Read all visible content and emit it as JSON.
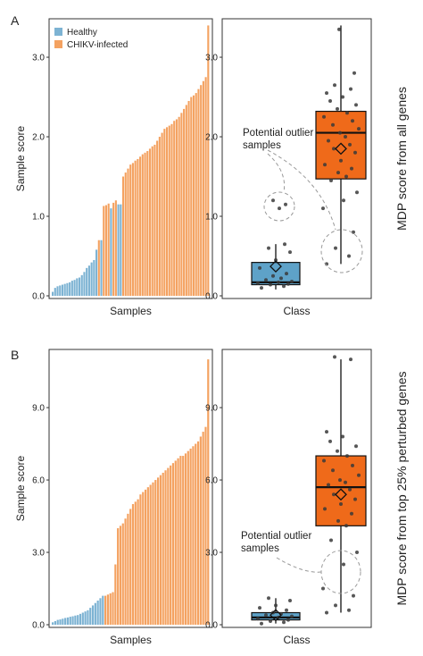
{
  "panel_letters": [
    "A",
    "B"
  ],
  "legend": [
    {
      "label": "Healthy",
      "color": "#7db3d3"
    },
    {
      "label": "CHIKV-infected",
      "color": "#f4a261"
    }
  ],
  "annotation_text": [
    "Potential outlier",
    "samples"
  ],
  "colors": {
    "healthy_box": "#5ea2c8",
    "infected_box": "#ef6a1a"
  },
  "chart_data": [
    {
      "type": "bar",
      "panel": "A",
      "xlabel": "Samples",
      "ylabel": "Sample score",
      "ylim": [
        0,
        3.45
      ],
      "yticks": [
        "0.0",
        "1.0",
        "2.0",
        "3.0"
      ],
      "ytick_values": [
        0,
        1,
        2,
        3
      ],
      "series": [
        {
          "name": "Healthy",
          "values": [
            0.05,
            0.1,
            0.12,
            0.13,
            0.14,
            0.15,
            0.16,
            0.17,
            0.19,
            0.2,
            0.22,
            0.23,
            0.26,
            0.3,
            0.35,
            0.38,
            0.42,
            0.45,
            0.58,
            0.7,
            1.1,
            1.15,
            1.15
          ]
        },
        {
          "name": "CHIKV-infected",
          "values": [
            0.7,
            1.13,
            1.14,
            1.16,
            1.17,
            1.2,
            1.5,
            1.55,
            1.6,
            1.65,
            1.67,
            1.7,
            1.72,
            1.75,
            1.78,
            1.8,
            1.82,
            1.85,
            1.88,
            1.9,
            1.95,
            2.0,
            2.05,
            2.1,
            2.12,
            2.14,
            2.16,
            2.2,
            2.22,
            2.25,
            2.3,
            2.35,
            2.4,
            2.45,
            2.5,
            2.52,
            2.55,
            2.6,
            2.65,
            2.7,
            2.75,
            3.4
          ]
        }
      ],
      "bar_order": [
        "H",
        "H",
        "H",
        "H",
        "H",
        "H",
        "H",
        "H",
        "H",
        "H",
        "H",
        "H",
        "H",
        "H",
        "H",
        "H",
        "H",
        "H",
        "H",
        "I",
        "H",
        "I",
        "I",
        "I",
        "H",
        "I",
        "I",
        "H",
        "H",
        "I",
        "I",
        "I",
        "I",
        "I",
        "I",
        "I",
        "I",
        "I",
        "I",
        "I",
        "I",
        "I",
        "I",
        "I",
        "I",
        "I",
        "I",
        "I",
        "I",
        "I",
        "I",
        "I",
        "I",
        "I",
        "I",
        "I",
        "I",
        "I",
        "I",
        "I",
        "I",
        "I",
        "I",
        "I",
        "I"
      ]
    },
    {
      "type": "box",
      "panel": "A",
      "xlabel": "Class",
      "ylabel": "MDP score from all genes",
      "ylim": [
        0,
        3.45
      ],
      "yticks": [
        "0.0",
        "1.0",
        "2.0",
        "3.0"
      ],
      "ytick_values": [
        0,
        1,
        2,
        3
      ],
      "groups": [
        {
          "name": "Healthy",
          "q1": 0.14,
          "median": 0.17,
          "q3": 0.42,
          "min": 0.08,
          "max": 0.65,
          "mean": 0.37,
          "points": [
            0.1,
            0.12,
            0.14,
            0.15,
            0.16,
            0.17,
            0.18,
            0.2,
            0.22,
            0.25,
            0.28,
            0.35,
            0.45,
            0.55,
            0.6,
            0.65,
            1.1,
            1.15,
            1.2
          ]
        },
        {
          "name": "CHIKV-infected",
          "q1": 1.47,
          "median": 2.05,
          "q3": 2.32,
          "min": 0.4,
          "max": 3.4,
          "mean": 1.85,
          "points": [
            0.4,
            0.5,
            0.6,
            0.8,
            1.1,
            1.2,
            1.3,
            1.45,
            1.5,
            1.55,
            1.6,
            1.65,
            1.7,
            1.8,
            1.85,
            1.9,
            1.95,
            2.0,
            2.05,
            2.1,
            2.15,
            2.2,
            2.25,
            2.3,
            2.35,
            2.4,
            2.45,
            2.5,
            2.55,
            2.6,
            2.65,
            2.8,
            3.35
          ]
        }
      ]
    },
    {
      "type": "bar",
      "panel": "B",
      "xlabel": "Samples",
      "ylabel": "Sample score",
      "ylim": [
        0,
        11.3
      ],
      "yticks": [
        "0.0",
        "3.0",
        "6.0",
        "9.0"
      ],
      "ytick_values": [
        0,
        3,
        6,
        9
      ],
      "series": [
        {
          "name": "Healthy",
          "values": [
            0.1,
            0.15,
            0.2,
            0.22,
            0.25,
            0.28,
            0.3,
            0.33,
            0.35,
            0.38,
            0.4,
            0.45,
            0.5,
            0.55,
            0.6,
            0.7,
            0.8,
            0.9,
            1.0,
            1.1,
            1.2
          ]
        },
        {
          "name": "CHIKV-infected",
          "values": [
            1.2,
            1.25,
            1.3,
            1.35,
            2.5,
            4.0,
            4.1,
            4.2,
            4.4,
            4.6,
            4.8,
            5.0,
            5.1,
            5.2,
            5.4,
            5.5,
            5.6,
            5.7,
            5.8,
            5.9,
            6.0,
            6.1,
            6.2,
            6.3,
            6.4,
            6.5,
            6.6,
            6.7,
            6.8,
            6.9,
            7.0,
            7.0,
            7.1,
            7.2,
            7.3,
            7.4,
            7.5,
            7.6,
            7.8,
            8.0,
            8.2,
            11.0
          ]
        }
      ]
    },
    {
      "type": "box",
      "panel": "B",
      "xlabel": "Class",
      "ylabel": "MDP score from top 25% perturbed genes",
      "ylim": [
        0,
        11.3
      ],
      "yticks": [
        "0.0",
        "3.0",
        "6.0",
        "9.0"
      ],
      "ytick_values": [
        0,
        3,
        6,
        9
      ],
      "groups": [
        {
          "name": "Healthy",
          "q1": 0.2,
          "median": 0.3,
          "q3": 0.5,
          "min": 0.05,
          "max": 1.1,
          "mean": 0.4,
          "points": [
            0.05,
            0.1,
            0.15,
            0.2,
            0.25,
            0.3,
            0.35,
            0.4,
            0.45,
            0.5,
            0.6,
            0.7,
            0.8,
            1.0,
            1.1
          ]
        },
        {
          "name": "CHIKV-infected",
          "q1": 4.1,
          "median": 5.7,
          "q3": 7.0,
          "min": 0.5,
          "max": 11.0,
          "mean": 5.4,
          "points": [
            0.5,
            0.6,
            0.8,
            1.2,
            1.5,
            2.5,
            3.0,
            3.5,
            4.1,
            4.3,
            4.6,
            4.8,
            5.0,
            5.2,
            5.4,
            5.6,
            5.8,
            5.9,
            6.0,
            6.2,
            6.4,
            6.6,
            6.8,
            7.0,
            7.2,
            7.4,
            7.6,
            7.8,
            8.0,
            11.0,
            11.1
          ]
        }
      ]
    }
  ]
}
